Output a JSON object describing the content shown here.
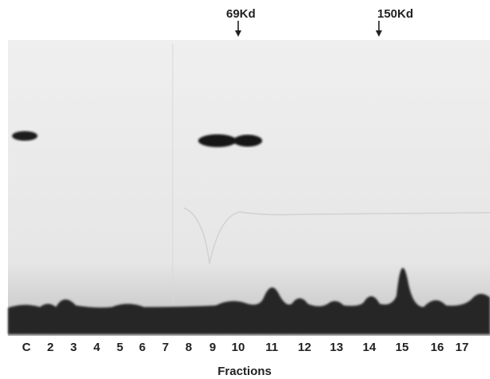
{
  "markers": [
    {
      "label": "69Kd"
    },
    {
      "label": "150Kd"
    }
  ],
  "lanes": [
    "C",
    "2",
    "3",
    "4",
    "5",
    "6",
    "7",
    "8",
    "9",
    "10",
    "11",
    "12",
    "13",
    "14",
    "15",
    "16",
    "17"
  ],
  "axis_label": "Fractions"
}
